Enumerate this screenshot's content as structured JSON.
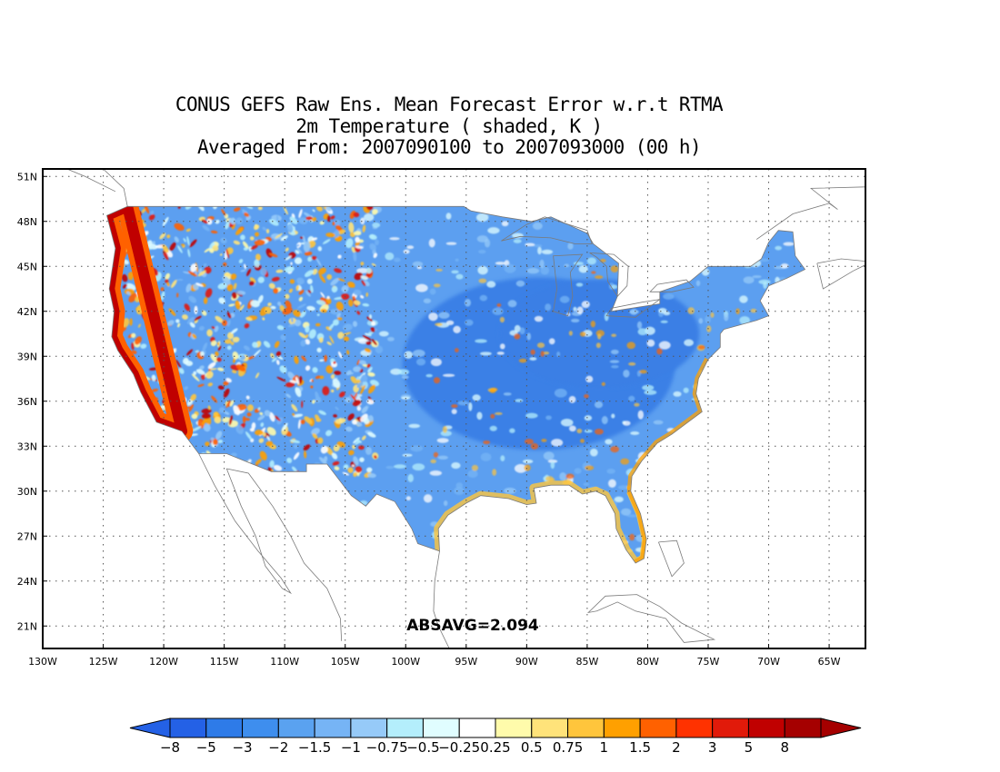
{
  "title": {
    "line1": "CONUS GEFS Raw Ens. Mean Forecast Error w.r.t RTMA",
    "line2": "2m Temperature ( shaded, K )",
    "line3": "Averaged From: 2007090100 to 2007093000 (00 h)"
  },
  "annotation": "ABSAVG=2.094",
  "map": {
    "lon_range": [
      -130,
      -62
    ],
    "lat_range": [
      19.5,
      51.5
    ],
    "grid": "dotted",
    "lon_ticks": [
      {
        "value": -130,
        "label": "130W"
      },
      {
        "value": -125,
        "label": "125W"
      },
      {
        "value": -120,
        "label": "120W"
      },
      {
        "value": -115,
        "label": "115W"
      },
      {
        "value": -110,
        "label": "110W"
      },
      {
        "value": -105,
        "label": "105W"
      },
      {
        "value": -100,
        "label": "100W"
      },
      {
        "value": -95,
        "label": "95W"
      },
      {
        "value": -90,
        "label": "90W"
      },
      {
        "value": -85,
        "label": "85W"
      },
      {
        "value": -80,
        "label": "80W"
      },
      {
        "value": -75,
        "label": "75W"
      },
      {
        "value": -70,
        "label": "70W"
      },
      {
        "value": -65,
        "label": "65W"
      }
    ],
    "lat_ticks": [
      {
        "value": 21,
        "label": "21N"
      },
      {
        "value": 24,
        "label": "24N"
      },
      {
        "value": 27,
        "label": "27N"
      },
      {
        "value": 30,
        "label": "30N"
      },
      {
        "value": 33,
        "label": "33N"
      },
      {
        "value": 36,
        "label": "36N"
      },
      {
        "value": 39,
        "label": "39N"
      },
      {
        "value": 42,
        "label": "42N"
      },
      {
        "value": 45,
        "label": "45N"
      },
      {
        "value": 48,
        "label": "48N"
      },
      {
        "value": 51,
        "label": "51N"
      }
    ],
    "conus_outline_lonlat": [
      [
        -124.7,
        48.4
      ],
      [
        -123.0,
        49.0
      ],
      [
        -95.2,
        49.0
      ],
      [
        -94.6,
        48.7
      ],
      [
        -92.0,
        48.3
      ],
      [
        -89.6,
        48.0
      ],
      [
        -88.0,
        48.3
      ],
      [
        -85.0,
        47.2
      ],
      [
        -84.5,
        46.5
      ],
      [
        -82.4,
        45.2
      ],
      [
        -82.5,
        43.0
      ],
      [
        -83.0,
        42.0
      ],
      [
        -79.0,
        42.5
      ],
      [
        -79.0,
        43.3
      ],
      [
        -76.5,
        44.0
      ],
      [
        -75.0,
        45.0
      ],
      [
        -71.5,
        45.0
      ],
      [
        -70.6,
        45.5
      ],
      [
        -70.0,
        46.6
      ],
      [
        -69.2,
        47.4
      ],
      [
        -68.0,
        47.3
      ],
      [
        -67.8,
        45.7
      ],
      [
        -67.0,
        44.8
      ],
      [
        -68.5,
        44.2
      ],
      [
        -70.0,
        43.7
      ],
      [
        -70.7,
        42.7
      ],
      [
        -70.0,
        41.7
      ],
      [
        -71.0,
        41.4
      ],
      [
        -73.7,
        40.8
      ],
      [
        -74.0,
        40.5
      ],
      [
        -74.0,
        39.6
      ],
      [
        -75.0,
        38.8
      ],
      [
        -75.8,
        37.5
      ],
      [
        -76.0,
        36.5
      ],
      [
        -75.5,
        35.3
      ],
      [
        -76.5,
        34.7
      ],
      [
        -78.0,
        33.8
      ],
      [
        -79.2,
        33.2
      ],
      [
        -80.5,
        32.0
      ],
      [
        -81.3,
        31.0
      ],
      [
        -81.4,
        30.0
      ],
      [
        -80.6,
        28.5
      ],
      [
        -80.1,
        26.8
      ],
      [
        -80.3,
        25.5
      ],
      [
        -81.0,
        25.2
      ],
      [
        -81.8,
        26.1
      ],
      [
        -82.6,
        27.5
      ],
      [
        -82.7,
        28.5
      ],
      [
        -83.5,
        29.7
      ],
      [
        -84.3,
        30.0
      ],
      [
        -85.4,
        29.8
      ],
      [
        -86.5,
        30.4
      ],
      [
        -88.0,
        30.4
      ],
      [
        -89.4,
        30.2
      ],
      [
        -89.2,
        29.2
      ],
      [
        -90.0,
        29.1
      ],
      [
        -91.5,
        29.5
      ],
      [
        -93.8,
        29.7
      ],
      [
        -95.0,
        29.2
      ],
      [
        -96.5,
        28.4
      ],
      [
        -97.3,
        27.5
      ],
      [
        -97.2,
        26.0
      ],
      [
        -99.0,
        26.5
      ],
      [
        -99.5,
        27.5
      ],
      [
        -100.9,
        29.3
      ],
      [
        -102.4,
        29.8
      ],
      [
        -103.3,
        29.0
      ],
      [
        -104.5,
        29.7
      ],
      [
        -106.5,
        31.8
      ],
      [
        -108.2,
        31.8
      ],
      [
        -108.2,
        31.3
      ],
      [
        -111.1,
        31.3
      ],
      [
        -114.8,
        32.5
      ],
      [
        -117.1,
        32.5
      ],
      [
        -118.5,
        34.0
      ],
      [
        -120.6,
        34.6
      ],
      [
        -121.9,
        36.6
      ],
      [
        -122.5,
        37.8
      ],
      [
        -123.8,
        39.4
      ],
      [
        -124.3,
        40.3
      ],
      [
        -124.1,
        42.0
      ],
      [
        -124.5,
        43.5
      ],
      [
        -124.0,
        46.2
      ],
      [
        -124.7,
        48.4
      ]
    ],
    "great_lakes_lonlat": [
      [
        [
          -92.1,
          46.7
        ],
        [
          -90.5,
          47.0
        ],
        [
          -88.0,
          46.9
        ],
        [
          -86.0,
          46.5
        ],
        [
          -84.6,
          46.5
        ],
        [
          -85.0,
          47.4
        ],
        [
          -88.5,
          48.3
        ],
        [
          -90.0,
          47.8
        ],
        [
          -92.1,
          46.7
        ]
      ],
      [
        [
          -87.8,
          45.7
        ],
        [
          -87.5,
          43.5
        ],
        [
          -87.8,
          42.0
        ],
        [
          -86.6,
          41.7
        ],
        [
          -86.2,
          43.0
        ],
        [
          -86.4,
          44.6
        ],
        [
          -85.4,
          45.8
        ],
        [
          -87.8,
          45.7
        ]
      ],
      [
        [
          -84.8,
          45.9
        ],
        [
          -84.2,
          45.6
        ],
        [
          -83.4,
          45.0
        ],
        [
          -83.3,
          44.0
        ],
        [
          -82.5,
          43.0
        ],
        [
          -81.7,
          43.7
        ],
        [
          -81.6,
          45.0
        ],
        [
          -82.8,
          45.8
        ],
        [
          -84.8,
          45.9
        ]
      ],
      [
        [
          -83.4,
          41.7
        ],
        [
          -81.0,
          41.6
        ],
        [
          -79.0,
          42.8
        ],
        [
          -80.5,
          42.6
        ],
        [
          -83.0,
          42.2
        ],
        [
          -83.4,
          41.7
        ]
      ],
      [
        [
          -79.8,
          43.3
        ],
        [
          -78.0,
          43.3
        ],
        [
          -76.2,
          43.6
        ],
        [
          -76.8,
          44.1
        ],
        [
          -79.2,
          43.8
        ],
        [
          -79.8,
          43.3
        ]
      ]
    ],
    "other_coasts_lonlat": [
      [
        [
          -117.1,
          32.5
        ],
        [
          -115.8,
          30.4
        ],
        [
          -114.1,
          28.0
        ],
        [
          -112.2,
          26.0
        ],
        [
          -110.3,
          24.2
        ],
        [
          -109.5,
          23.2
        ],
        [
          -110.2,
          23.5
        ],
        [
          -111.6,
          25.0
        ],
        [
          -112.4,
          27.0
        ],
        [
          -113.6,
          29.0
        ],
        [
          -114.8,
          31.5
        ]
      ],
      [
        [
          -114.8,
          31.5
        ],
        [
          -113.0,
          31.2
        ],
        [
          -111.0,
          29.0
        ],
        [
          -109.5,
          27.0
        ],
        [
          -108.4,
          25.2
        ],
        [
          -106.5,
          23.5
        ],
        [
          -105.4,
          21.5
        ],
        [
          -105.3,
          20.0
        ]
      ],
      [
        [
          -97.2,
          26.0
        ],
        [
          -97.6,
          24.0
        ],
        [
          -97.7,
          22.0
        ],
        [
          -97.3,
          21.0
        ],
        [
          -96.4,
          19.5
        ]
      ],
      [
        [
          -80.9,
          23.1
        ],
        [
          -79.0,
          22.3
        ],
        [
          -77.2,
          21.2
        ],
        [
          -75.5,
          20.5
        ],
        [
          -74.5,
          20.1
        ],
        [
          -77.0,
          19.9
        ],
        [
          -78.5,
          21.5
        ],
        [
          -81.0,
          22.0
        ],
        [
          -82.5,
          22.6
        ],
        [
          -84.2,
          22.0
        ],
        [
          -84.9,
          21.9
        ],
        [
          -83.5,
          23.0
        ],
        [
          -80.9,
          23.1
        ]
      ],
      [
        [
          -79.1,
          26.6
        ],
        [
          -77.6,
          26.7
        ],
        [
          -77.0,
          25.2
        ],
        [
          -78.0,
          24.3
        ],
        [
          -79.1,
          26.6
        ]
      ],
      [
        [
          -66.0,
          45.2
        ],
        [
          -64.0,
          45.5
        ],
        [
          -61.5,
          45.3
        ],
        [
          -63.0,
          44.7
        ],
        [
          -65.5,
          43.5
        ],
        [
          -66.0,
          45.2
        ]
      ],
      [
        [
          -124.0,
          50.0
        ],
        [
          -126.5,
          51.0
        ],
        [
          -128.0,
          51.5
        ]
      ],
      [
        [
          -123.0,
          49.0
        ],
        [
          -123.3,
          50.2
        ],
        [
          -125.0,
          51.5
        ]
      ],
      [
        [
          -71.0,
          46.8
        ],
        [
          -68.0,
          48.5
        ],
        [
          -65.0,
          49.2
        ],
        [
          -64.3,
          48.8
        ],
        [
          -66.5,
          50.2
        ],
        [
          -62.0,
          50.3
        ]
      ]
    ]
  },
  "colorbar": {
    "colors": [
      "#2461e6",
      "#2e7be8",
      "#3e8eee",
      "#5aa2f0",
      "#76b4f5",
      "#96caf8",
      "#b4eefc",
      "#e0fdff",
      "#ffffff",
      "#fffbab",
      "#ffe37a",
      "#ffc53c",
      "#ffa000",
      "#ff6100",
      "#ff3200",
      "#e11a0a",
      "#c00000",
      "#a50000"
    ],
    "labels": [
      "-8",
      "-5",
      "-3",
      "-2",
      "-1.5",
      "-1",
      "-0.75",
      "-0.5",
      "-0.25",
      "0.25",
      "0.5",
      "0.75",
      "1",
      "1.5",
      "2",
      "3",
      "5",
      "8"
    ],
    "left_arrow_color": "#2461e6",
    "right_arrow_color": "#a50000"
  }
}
